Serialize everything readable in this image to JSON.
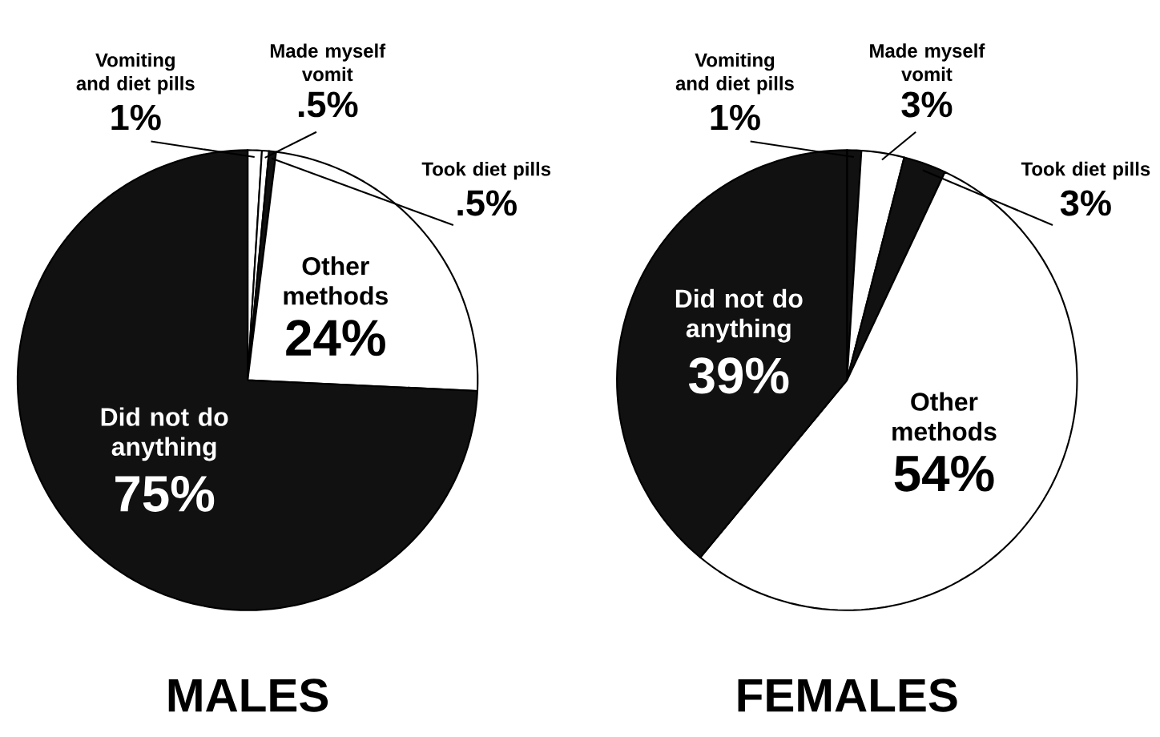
{
  "chart_data": [
    {
      "type": "pie",
      "title": "MALES",
      "categories": [
        "Vomiting and diet pills",
        "Made myself vomit",
        "Took diet pills",
        "Other methods",
        "Did not do anything"
      ],
      "values": [
        1,
        0.5,
        0.5,
        24,
        75
      ],
      "colors": [
        "#ffffff",
        "#ffffff",
        "#111111",
        "#ffffff",
        "#111111"
      ],
      "value_labels": [
        "1%",
        ".5%",
        ".5%",
        "24%",
        "75%"
      ]
    },
    {
      "type": "pie",
      "title": "FEMALES",
      "categories": [
        "Vomiting and diet pills",
        "Made myself vomit",
        "Took diet pills",
        "Other methods",
        "Did not do anything"
      ],
      "values": [
        1,
        3,
        3,
        54,
        39
      ],
      "colors": [
        "#111111",
        "#ffffff",
        "#111111",
        "#ffffff",
        "#111111"
      ],
      "value_labels": [
        "1%",
        "3%",
        "3%",
        "54%",
        "39%"
      ]
    }
  ]
}
